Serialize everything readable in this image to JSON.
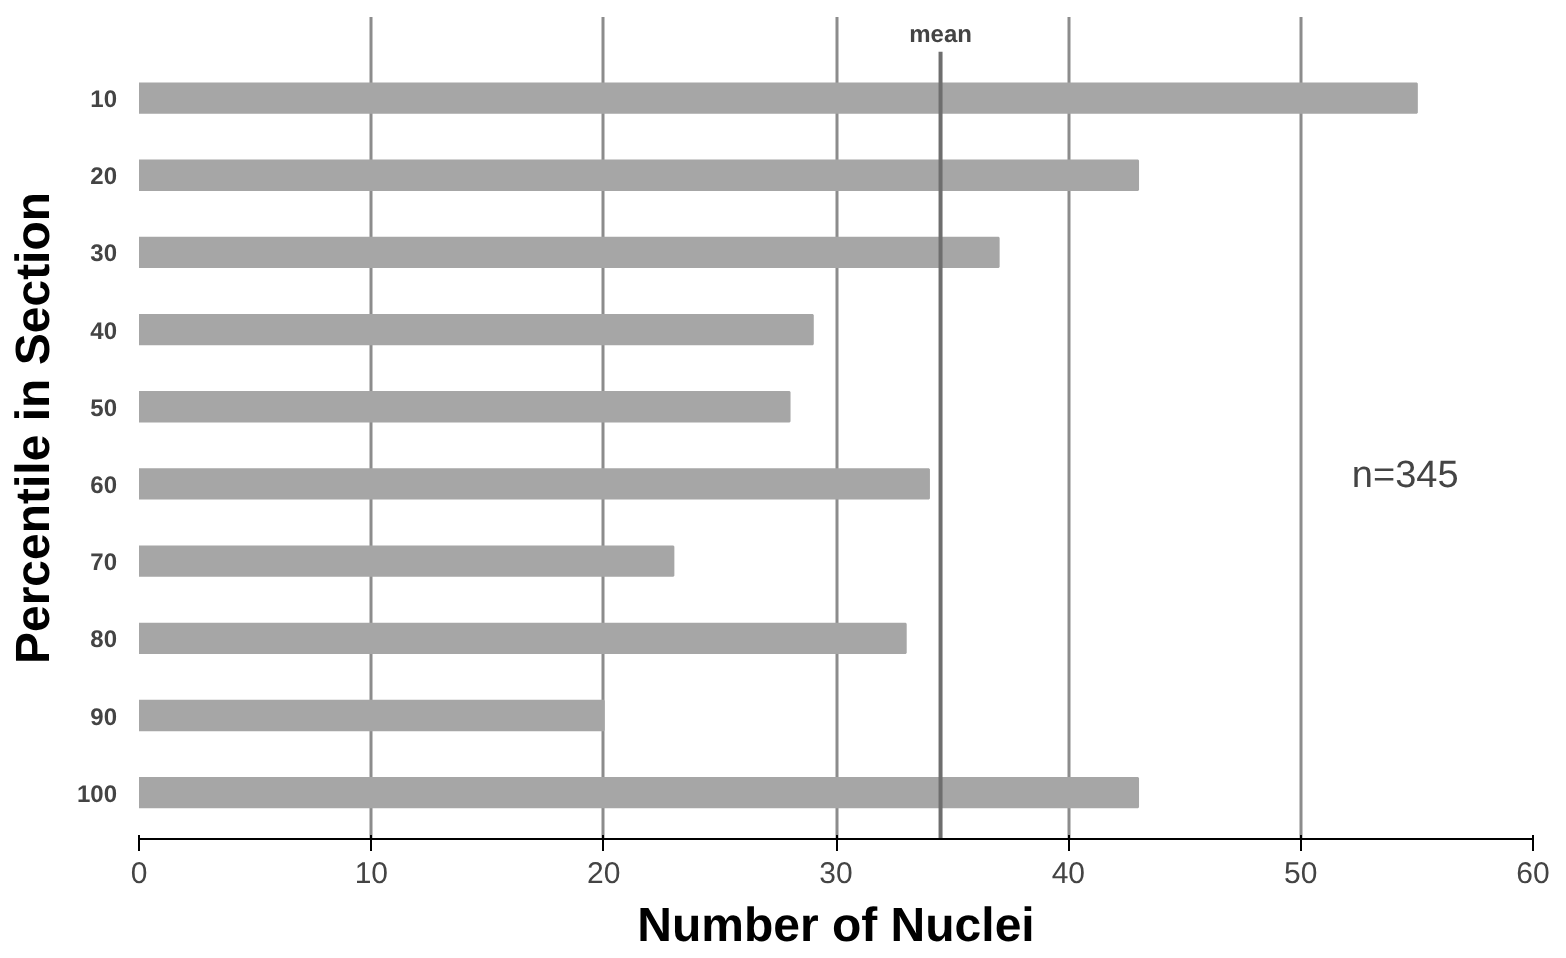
{
  "chart_data": {
    "type": "bar",
    "orientation": "horizontal",
    "categories": [
      "10",
      "20",
      "30",
      "40",
      "50",
      "60",
      "70",
      "80",
      "90",
      "100"
    ],
    "values": [
      55,
      43,
      37,
      29,
      28,
      34,
      23,
      33,
      20,
      43
    ],
    "color": "#a6a6a6",
    "xlabel": "Number of Nuclei",
    "ylabel": "Percentile in Section",
    "xlim": [
      0,
      60
    ],
    "xticks": [
      0,
      10,
      20,
      30,
      40,
      50,
      60
    ],
    "grid": "x",
    "ref_lines": [
      {
        "axis": "x",
        "value": 34.5,
        "label": "mean",
        "color": "#6e6e6e"
      }
    ],
    "annotations": [
      "n=345"
    ]
  }
}
